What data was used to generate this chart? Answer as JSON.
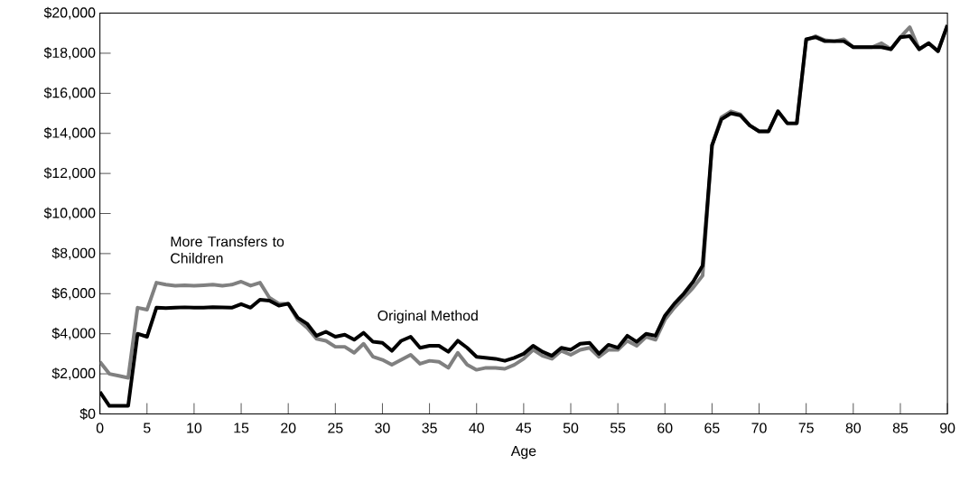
{
  "chart_data": {
    "type": "line",
    "xlabel": "Age",
    "x": [
      0,
      1,
      2,
      3,
      4,
      5,
      6,
      7,
      8,
      9,
      10,
      11,
      12,
      13,
      14,
      15,
      16,
      17,
      18,
      19,
      20,
      21,
      22,
      23,
      24,
      25,
      26,
      27,
      28,
      29,
      30,
      31,
      32,
      33,
      34,
      35,
      36,
      37,
      38,
      39,
      40,
      41,
      42,
      43,
      44,
      45,
      46,
      47,
      48,
      49,
      50,
      51,
      52,
      53,
      54,
      55,
      56,
      57,
      58,
      59,
      60,
      61,
      62,
      63,
      64,
      65,
      66,
      67,
      68,
      69,
      70,
      71,
      72,
      73,
      74,
      75,
      76,
      77,
      78,
      79,
      80,
      81,
      82,
      83,
      84,
      85,
      86,
      87,
      88,
      89,
      90
    ],
    "series": [
      {
        "name": "More Transfers to Children",
        "color": "#808080",
        "values": [
          2600,
          2000,
          1900,
          1800,
          5300,
          5200,
          6550,
          6450,
          6400,
          6420,
          6400,
          6420,
          6450,
          6400,
          6450,
          6600,
          6400,
          6550,
          5800,
          5500,
          5500,
          4700,
          4300,
          3750,
          3650,
          3350,
          3350,
          3050,
          3500,
          2850,
          2700,
          2450,
          2700,
          2950,
          2500,
          2650,
          2600,
          2300,
          3050,
          2450,
          2200,
          2300,
          2300,
          2250,
          2450,
          2750,
          3200,
          2900,
          2750,
          3150,
          2950,
          3200,
          3300,
          2850,
          3200,
          3200,
          3650,
          3400,
          3850,
          3700,
          4700,
          5300,
          5800,
          6300,
          6900,
          13400,
          14800,
          15100,
          14950,
          14400,
          14100,
          14100,
          15100,
          14500,
          14500,
          18650,
          18850,
          18650,
          18600,
          18700,
          18300,
          18300,
          18300,
          18500,
          18200,
          18800,
          19300,
          18200,
          18500,
          18100,
          19400
        ]
      },
      {
        "name": "Original Method",
        "color": "#000000",
        "values": [
          1100,
          400,
          400,
          400,
          4000,
          3850,
          5300,
          5280,
          5300,
          5320,
          5300,
          5300,
          5330,
          5320,
          5300,
          5480,
          5300,
          5700,
          5650,
          5400,
          5500,
          4800,
          4500,
          3900,
          4100,
          3850,
          3950,
          3700,
          4050,
          3600,
          3550,
          3150,
          3650,
          3850,
          3300,
          3400,
          3400,
          3100,
          3650,
          3300,
          2850,
          2800,
          2750,
          2650,
          2800,
          3000,
          3400,
          3100,
          2900,
          3300,
          3200,
          3500,
          3550,
          3000,
          3450,
          3300,
          3900,
          3600,
          4000,
          3900,
          4900,
          5500,
          6000,
          6600,
          7400,
          13400,
          14700,
          15000,
          14900,
          14400,
          14100,
          14100,
          15100,
          14500,
          14500,
          18700,
          18800,
          18600,
          18600,
          18600,
          18300,
          18300,
          18300,
          18300,
          18200,
          18800,
          18850,
          18200,
          18500,
          18100,
          19400
        ]
      }
    ],
    "xlim": [
      0,
      90
    ],
    "ylim": [
      0,
      20000
    ],
    "xticks": [
      0,
      5,
      10,
      15,
      20,
      25,
      30,
      35,
      40,
      45,
      50,
      55,
      60,
      65,
      70,
      75,
      80,
      85,
      90
    ],
    "yticks": [
      {
        "value": 0,
        "label": "$0"
      },
      {
        "value": 2000,
        "label": "$2,000"
      },
      {
        "value": 4000,
        "label": "$4,000"
      },
      {
        "value": 6000,
        "label": "$6,000"
      },
      {
        "value": 8000,
        "label": "$8,000"
      },
      {
        "value": 10000,
        "label": "$10,000"
      },
      {
        "value": 12000,
        "label": "$12,000"
      },
      {
        "value": 14000,
        "label": "$14,000"
      },
      {
        "value": 16000,
        "label": "$16,000"
      },
      {
        "value": 18000,
        "label": "$18,000"
      },
      {
        "value": 20000,
        "label": "$20,000"
      }
    ],
    "grid": false,
    "legend": false
  }
}
